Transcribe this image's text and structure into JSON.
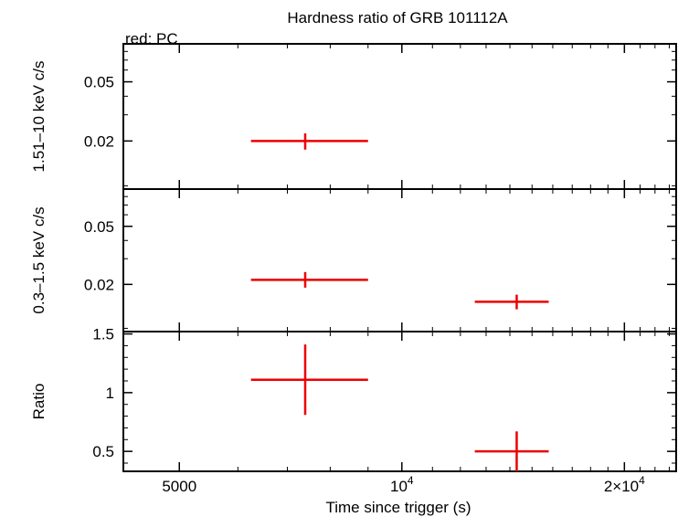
{
  "chart_data": {
    "type": "scatter",
    "title": "Hardness ratio of GRB 101112A",
    "legend": "red: PC",
    "xlabel": "Time since trigger (s)",
    "xscale": "log",
    "xlim": [
      4200,
      23500
    ],
    "xticks": [
      {
        "value": 5000,
        "label": "5000",
        "sup": ""
      },
      {
        "value": 10000,
        "label": "10",
        "sup": "4"
      },
      {
        "value": 20000,
        "label": "2×10",
        "sup": "4"
      }
    ],
    "series_color": "#ee0000",
    "panels": [
      {
        "id": "hard",
        "ylabel": "1.51–10 keV c/s",
        "yscale": "log",
        "ylim": [
          0.0095,
          0.09
        ],
        "yticks": [
          {
            "value": 0.02,
            "label": "0.02"
          },
          {
            "value": 0.05,
            "label": "0.05"
          }
        ],
        "points": [
          {
            "x": 7400,
            "xlo": 6250,
            "xhi": 9000,
            "y": 0.02,
            "ylo": 0.0175,
            "yhi": 0.0225
          }
        ]
      },
      {
        "id": "soft",
        "ylabel": "0.3–1.5 keV c/s",
        "yscale": "log",
        "ylim": [
          0.0095,
          0.09
        ],
        "yticks": [
          {
            "value": 0.02,
            "label": "0.02"
          },
          {
            "value": 0.05,
            "label": "0.05"
          }
        ],
        "points": [
          {
            "x": 7400,
            "xlo": 6250,
            "xhi": 9000,
            "y": 0.0215,
            "ylo": 0.019,
            "yhi": 0.0243
          },
          {
            "x": 14300,
            "xlo": 12550,
            "xhi": 15800,
            "y": 0.0152,
            "ylo": 0.0135,
            "yhi": 0.017
          }
        ]
      },
      {
        "id": "ratio",
        "ylabel": "Ratio",
        "yscale": "linear",
        "ylim": [
          0.33,
          1.52
        ],
        "yticks": [
          {
            "value": 0.5,
            "label": "0.5"
          },
          {
            "value": 1,
            "label": "1"
          },
          {
            "value": 1.5,
            "label": "1.5"
          }
        ],
        "points": [
          {
            "x": 7400,
            "xlo": 6250,
            "xhi": 9000,
            "y": 1.11,
            "ylo": 0.81,
            "yhi": 1.41
          },
          {
            "x": 14300,
            "xlo": 12550,
            "xhi": 15800,
            "y": 0.5,
            "ylo": 0.33,
            "yhi": 0.67
          }
        ]
      }
    ]
  }
}
